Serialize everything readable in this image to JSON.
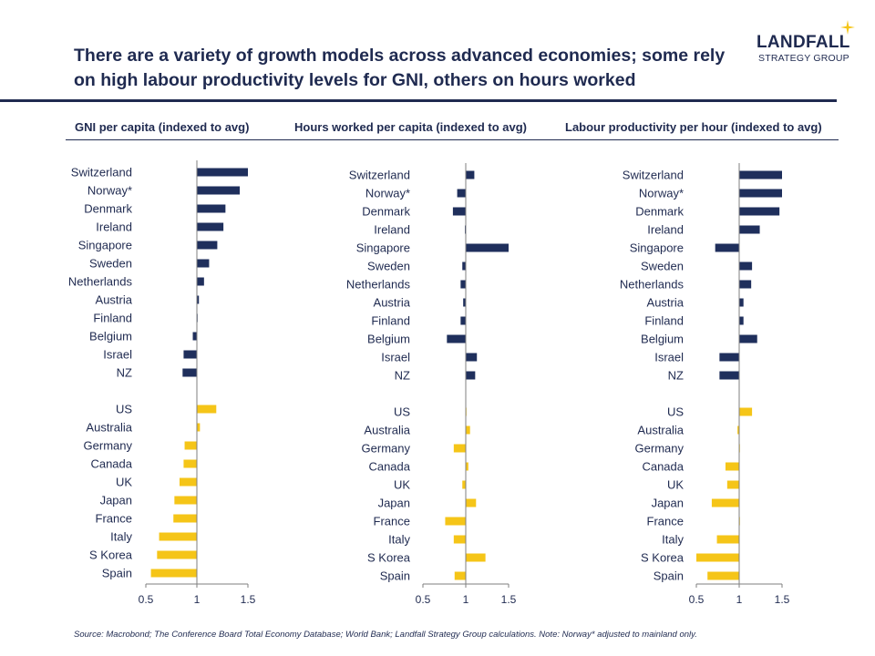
{
  "title": "There are a variety of growth models across advanced economies; some rely on high labour productivity levels for GNI, others on hours worked",
  "logo": {
    "name": "LANDFALL",
    "sub": "STRATEGY GROUP"
  },
  "source": "Source: Macrobond;  The Conference Board Total Economy Database; World Bank; Landfall Strategy Group calculations. Note: Norway* adjusted to mainland only.",
  "colors": {
    "navy": "#1f2f5c",
    "gold": "#f5c518",
    "text": "#1f2a50"
  },
  "chart_data": [
    {
      "type": "bar",
      "orientation": "horizontal",
      "title": "GNI per capita (indexed to avg)",
      "categories": [
        "Switzerland",
        "Norway*",
        "Denmark",
        "Ireland",
        "Singapore",
        "Sweden",
        "Netherlands",
        "Austria",
        "Finland",
        "Belgium",
        "Israel",
        "NZ",
        "US",
        "Australia",
        "Germany",
        "Canada",
        "UK",
        "Japan",
        "France",
        "Italy",
        "S Korea",
        "Spain"
      ],
      "values": [
        1.5,
        1.42,
        1.28,
        1.26,
        1.2,
        1.12,
        1.07,
        1.02,
        1.0,
        0.96,
        0.87,
        0.86,
        1.19,
        1.03,
        0.88,
        0.87,
        0.83,
        0.78,
        0.77,
        0.63,
        0.61,
        0.55
      ],
      "groups": [
        "navy",
        "navy",
        "navy",
        "navy",
        "navy",
        "navy",
        "navy",
        "navy",
        "navy",
        "navy",
        "navy",
        "navy",
        "gold",
        "gold",
        "gold",
        "gold",
        "gold",
        "gold",
        "gold",
        "gold",
        "gold",
        "gold"
      ],
      "baseline": 1,
      "xlim": [
        0.5,
        1.5
      ],
      "xticks": [
        "0.5",
        "1",
        "1.5"
      ]
    },
    {
      "type": "bar",
      "orientation": "horizontal",
      "title": "Hours worked per capita (indexed to avg)",
      "categories": [
        "Switzerland",
        "Norway*",
        "Denmark",
        "Ireland",
        "Singapore",
        "Sweden",
        "Netherlands",
        "Austria",
        "Finland",
        "Belgium",
        "Israel",
        "NZ",
        "US",
        "Australia",
        "Germany",
        "Canada",
        "UK",
        "Japan",
        "France",
        "Italy",
        "S Korea",
        "Spain"
      ],
      "values": [
        1.1,
        0.9,
        0.85,
        0.99,
        1.5,
        0.96,
        0.94,
        0.97,
        0.94,
        0.78,
        1.13,
        1.11,
        1.0,
        1.05,
        0.86,
        1.03,
        0.96,
        1.12,
        0.76,
        0.86,
        1.23,
        0.87
      ],
      "groups": [
        "navy",
        "navy",
        "navy",
        "navy",
        "navy",
        "navy",
        "navy",
        "navy",
        "navy",
        "navy",
        "navy",
        "navy",
        "gold",
        "gold",
        "gold",
        "gold",
        "gold",
        "gold",
        "gold",
        "gold",
        "gold",
        "gold"
      ],
      "baseline": 1,
      "xlim": [
        0.5,
        1.5
      ],
      "xticks": [
        "0.5",
        "1",
        "1.5"
      ]
    },
    {
      "type": "bar",
      "orientation": "horizontal",
      "title": "Labour productivity per hour (indexed to avg)",
      "categories": [
        "Switzerland",
        "Norway*",
        "Denmark",
        "Ireland",
        "Singapore",
        "Sweden",
        "Netherlands",
        "Austria",
        "Finland",
        "Belgium",
        "Israel",
        "NZ",
        "US",
        "Australia",
        "Germany",
        "Canada",
        "UK",
        "Japan",
        "France",
        "Italy",
        "S Korea",
        "Spain"
      ],
      "values": [
        1.5,
        1.5,
        1.47,
        1.24,
        0.72,
        1.15,
        1.14,
        1.05,
        1.05,
        1.21,
        0.77,
        0.77,
        1.15,
        0.98,
        1.0,
        0.84,
        0.86,
        0.68,
        1.0,
        0.74,
        0.5,
        0.63
      ],
      "groups": [
        "navy",
        "navy",
        "navy",
        "navy",
        "navy",
        "navy",
        "navy",
        "navy",
        "navy",
        "navy",
        "navy",
        "navy",
        "gold",
        "gold",
        "gold",
        "gold",
        "gold",
        "gold",
        "gold",
        "gold",
        "gold",
        "gold"
      ],
      "baseline": 1,
      "xlim": [
        0.5,
        1.5
      ],
      "xticks": [
        "0.5",
        "1",
        "1.5"
      ]
    }
  ]
}
